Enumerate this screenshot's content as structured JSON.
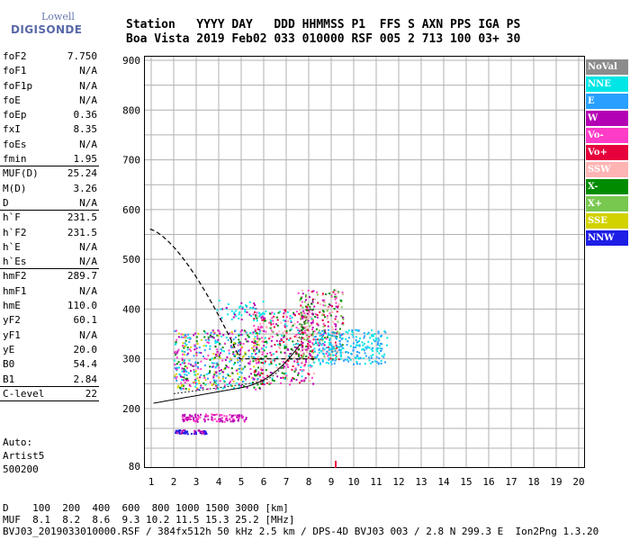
{
  "logo": {
    "top": "Lowell",
    "bottom": "DIGISONDE"
  },
  "header": {
    "line1": "Station   YYYY DAY   DDD HHMMSS P1  FFS S AXN PPS IGA PS",
    "line2": "Boa Vista 2019 Feb02 033 010000 RSF 005 2 713 100 03+ 30"
  },
  "params": [
    {
      "name": "foF2",
      "value": "7.750"
    },
    {
      "name": "foF1",
      "value": "N/A"
    },
    {
      "name": "foF1p",
      "value": "N/A"
    },
    {
      "name": "foE",
      "value": "N/A"
    },
    {
      "name": "foEp",
      "value": "0.36"
    },
    {
      "name": "fxI",
      "value": "8.35"
    },
    {
      "name": "foEs",
      "value": "N/A"
    },
    {
      "name": "fmin",
      "value": "1.95",
      "sep": true
    },
    {
      "name": "MUF(D)",
      "value": "25.24"
    },
    {
      "name": "M(D)",
      "value": "3.26"
    },
    {
      "name": "D",
      "value": "N/A",
      "sep": true
    },
    {
      "name": "h`F",
      "value": "231.5"
    },
    {
      "name": "h`F2",
      "value": "231.5"
    },
    {
      "name": "h`E",
      "value": "N/A"
    },
    {
      "name": "h`Es",
      "value": "N/A",
      "sep": true
    },
    {
      "name": "hmF2",
      "value": "289.7"
    },
    {
      "name": "hmF1",
      "value": "N/A"
    },
    {
      "name": "hmE",
      "value": "110.0"
    },
    {
      "name": "yF2",
      "value": "60.1"
    },
    {
      "name": "yF1",
      "value": "N/A"
    },
    {
      "name": "yE",
      "value": "20.0"
    },
    {
      "name": "B0",
      "value": "54.4"
    },
    {
      "name": "B1",
      "value": "2.84",
      "sep": true
    },
    {
      "name": "C-level",
      "value": "22",
      "sep": true
    }
  ],
  "auto": {
    "line1": "Auto:",
    "line2": "Artist5",
    "line3": "500200"
  },
  "legend": [
    {
      "label": "NoVal",
      "color": "#8c8c8c"
    },
    {
      "label": "NNE",
      "color": "#00e6e6"
    },
    {
      "label": "E",
      "color": "#28a0ff"
    },
    {
      "label": "W",
      "color": "#b400b4"
    },
    {
      "label": "Vo-",
      "color": "#ff3cc8"
    },
    {
      "label": "Vo+",
      "color": "#e6003c"
    },
    {
      "label": "SSW",
      "color": "#ffb4b4"
    },
    {
      "label": "X-",
      "color": "#008c00"
    },
    {
      "label": "X+",
      "color": "#78c850"
    },
    {
      "label": "SSE",
      "color": "#d2d200"
    },
    {
      "label": "NNW",
      "color": "#1e1ee6"
    }
  ],
  "axes": {
    "y_ticks": [
      80,
      200,
      300,
      400,
      500,
      600,
      700,
      800,
      900
    ],
    "x_ticks": [
      1,
      2,
      3,
      4,
      5,
      6,
      7,
      8,
      9,
      10,
      11,
      12,
      13,
      14,
      15,
      16,
      17,
      18,
      19,
      20
    ]
  },
  "footer": {
    "line1": "D    100  200  400  600  800 1000 1500 3000 [km]",
    "line2": "MUF  8.1  8.2  8.6  9.3 10.2 11.5 15.3 25.2 [MHz]",
    "line3": "BVJ03_2019033010000.RSF / 384fx512h 50 kHz 2.5 km / DPS-4D BVJ03 003 / 2.8 N 299.3 E  Ion2Png 1.3.20"
  }
}
